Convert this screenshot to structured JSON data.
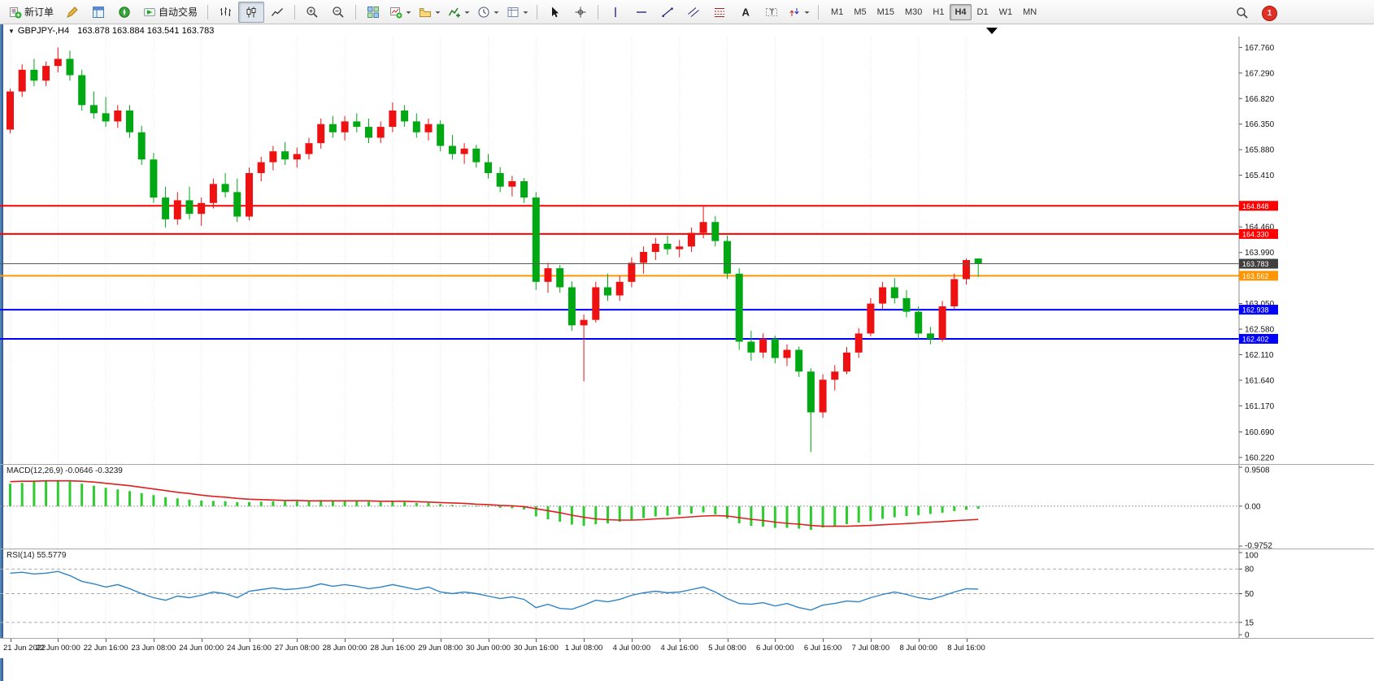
{
  "toolbar": {
    "new_order_label": "新订单",
    "autotrading_label": "自动交易",
    "timeframes": [
      "M1",
      "M5",
      "M15",
      "M30",
      "H1",
      "H4",
      "D1",
      "W1",
      "MN"
    ],
    "active_timeframe": "H4",
    "notification_count": "1"
  },
  "window": {
    "symbol": "GBPJPY-,H4",
    "ohlc": "163.878 163.884 163.541 163.783"
  },
  "chart_data": {
    "main": {
      "type": "candlestick",
      "symbol": "GBPJPY-",
      "timeframe": "H4",
      "current_ohlc": {
        "open": "163.878",
        "high": "163.884",
        "low": "163.541",
        "close": "163.783"
      },
      "up_color": "#ee1111",
      "down_color": "#00a814",
      "price_range": [
        160.1,
        167.96
      ],
      "candles": [
        [
          166.25,
          167.0,
          166.18,
          166.95
        ],
        [
          166.95,
          167.45,
          166.85,
          167.35
        ],
        [
          167.35,
          167.55,
          167.05,
          167.15
        ],
        [
          167.15,
          167.5,
          167.05,
          167.42
        ],
        [
          167.42,
          167.76,
          167.3,
          167.55
        ],
        [
          167.55,
          167.7,
          167.15,
          167.25
        ],
        [
          167.25,
          167.35,
          166.6,
          166.7
        ],
        [
          166.7,
          166.95,
          166.45,
          166.55
        ],
        [
          166.55,
          166.85,
          166.3,
          166.4
        ],
        [
          166.4,
          166.7,
          166.28,
          166.6
        ],
        [
          166.6,
          166.7,
          166.1,
          166.2
        ],
        [
          166.2,
          166.32,
          165.6,
          165.7
        ],
        [
          165.7,
          165.82,
          164.9,
          165.0
        ],
        [
          165.0,
          165.2,
          164.45,
          164.6
        ],
        [
          164.6,
          165.1,
          164.5,
          164.95
        ],
        [
          164.95,
          165.2,
          164.6,
          164.7
        ],
        [
          164.7,
          165.0,
          164.48,
          164.9
        ],
        [
          164.9,
          165.35,
          164.8,
          165.25
        ],
        [
          165.25,
          165.45,
          165.0,
          165.1
        ],
        [
          165.1,
          165.35,
          164.55,
          164.65
        ],
        [
          164.65,
          165.55,
          164.58,
          165.45
        ],
        [
          165.45,
          165.75,
          165.3,
          165.65
        ],
        [
          165.65,
          165.95,
          165.5,
          165.85
        ],
        [
          165.85,
          166.02,
          165.6,
          165.7
        ],
        [
          165.7,
          165.92,
          165.55,
          165.8
        ],
        [
          165.8,
          166.1,
          165.7,
          166.0
        ],
        [
          166.0,
          166.45,
          165.9,
          166.35
        ],
        [
          166.35,
          166.5,
          166.1,
          166.2
        ],
        [
          166.2,
          166.5,
          166.05,
          166.4
        ],
        [
          166.4,
          166.55,
          166.2,
          166.3
        ],
        [
          166.3,
          166.45,
          166.0,
          166.1
        ],
        [
          166.1,
          166.4,
          166.0,
          166.3
        ],
        [
          166.3,
          166.75,
          166.2,
          166.6
        ],
        [
          166.6,
          166.7,
          166.3,
          166.4
        ],
        [
          166.4,
          166.55,
          166.1,
          166.2
        ],
        [
          166.2,
          166.45,
          166.05,
          166.35
        ],
        [
          166.35,
          166.42,
          165.85,
          165.95
        ],
        [
          165.95,
          166.15,
          165.7,
          165.8
        ],
        [
          165.8,
          166.0,
          165.62,
          165.9
        ],
        [
          165.9,
          165.97,
          165.55,
          165.65
        ],
        [
          165.65,
          165.8,
          165.35,
          165.45
        ],
        [
          165.45,
          165.56,
          165.1,
          165.2
        ],
        [
          165.2,
          165.4,
          165.02,
          165.3
        ],
        [
          165.3,
          165.36,
          164.9,
          165.0
        ],
        [
          165.0,
          165.1,
          163.3,
          163.45
        ],
        [
          163.45,
          163.8,
          163.25,
          163.7
        ],
        [
          163.7,
          163.76,
          163.25,
          163.35
        ],
        [
          163.35,
          163.46,
          162.55,
          162.65
        ],
        [
          162.65,
          162.85,
          161.62,
          162.75
        ],
        [
          162.75,
          163.45,
          162.7,
          163.35
        ],
        [
          163.35,
          163.6,
          163.1,
          163.2
        ],
        [
          163.2,
          163.56,
          163.1,
          163.45
        ],
        [
          163.45,
          163.9,
          163.35,
          163.8
        ],
        [
          163.8,
          164.1,
          163.6,
          164.0
        ],
        [
          164.0,
          164.26,
          163.85,
          164.15
        ],
        [
          164.15,
          164.3,
          163.95,
          164.05
        ],
        [
          164.05,
          164.22,
          163.9,
          164.1
        ],
        [
          164.1,
          164.45,
          164.0,
          164.35
        ],
        [
          164.35,
          164.85,
          164.25,
          164.55
        ],
        [
          164.55,
          164.66,
          164.1,
          164.2
        ],
        [
          164.2,
          164.3,
          163.5,
          163.6
        ],
        [
          163.6,
          163.7,
          162.2,
          162.35
        ],
        [
          162.35,
          162.55,
          162.0,
          162.15
        ],
        [
          162.15,
          162.5,
          162.05,
          162.4
        ],
        [
          162.4,
          162.46,
          161.95,
          162.05
        ],
        [
          162.05,
          162.3,
          161.9,
          162.2
        ],
        [
          162.2,
          162.26,
          161.7,
          161.8
        ],
        [
          161.8,
          161.86,
          160.32,
          161.05
        ],
        [
          161.05,
          161.75,
          160.95,
          161.65
        ],
        [
          161.65,
          161.92,
          161.45,
          161.8
        ],
        [
          161.8,
          162.25,
          161.75,
          162.15
        ],
        [
          162.15,
          162.6,
          162.05,
          162.5
        ],
        [
          162.5,
          163.15,
          162.45,
          163.05
        ],
        [
          163.05,
          163.45,
          162.95,
          163.35
        ],
        [
          163.35,
          163.52,
          163.05,
          163.15
        ],
        [
          163.15,
          163.3,
          162.8,
          162.9
        ],
        [
          162.9,
          163.0,
          162.4,
          162.5
        ],
        [
          162.5,
          162.62,
          162.3,
          162.4
        ],
        [
          162.4,
          163.1,
          162.35,
          163.0
        ],
        [
          163.0,
          163.6,
          162.95,
          163.5
        ],
        [
          163.5,
          163.88,
          163.4,
          163.85
        ],
        [
          163.878,
          163.884,
          163.541,
          163.783
        ]
      ],
      "x_labels": [
        {
          "i": 0,
          "t": "21 Jun 2022"
        },
        {
          "i": 4,
          "t": "22 Jun 00:00"
        },
        {
          "i": 8,
          "t": "22 Jun 16:00"
        },
        {
          "i": 12,
          "t": "23 Jun 08:00"
        },
        {
          "i": 16,
          "t": "24 Jun 00:00"
        },
        {
          "i": 20,
          "t": "24 Jun 16:00"
        },
        {
          "i": 24,
          "t": "27 Jun 08:00"
        },
        {
          "i": 28,
          "t": "28 Jun 00:00"
        },
        {
          "i": 32,
          "t": "28 Jun 16:00"
        },
        {
          "i": 36,
          "t": "29 Jun 08:00"
        },
        {
          "i": 40,
          "t": "30 Jun 00:00"
        },
        {
          "i": 44,
          "t": "30 Jun 16:00"
        },
        {
          "i": 48,
          "t": "1 Jul 08:00"
        },
        {
          "i": 52,
          "t": "4 Jul 00:00"
        },
        {
          "i": 56,
          "t": "4 Jul 16:00"
        },
        {
          "i": 60,
          "t": "5 Jul 08:00"
        },
        {
          "i": 64,
          "t": "6 Jul 00:00"
        },
        {
          "i": 68,
          "t": "6 Jul 16:00"
        },
        {
          "i": 72,
          "t": "7 Jul 08:00"
        },
        {
          "i": 76,
          "t": "8 Jul 00:00"
        },
        {
          "i": 80,
          "t": "8 Jul 16:00"
        }
      ],
      "y_ticks": [
        {
          "v": 167.76,
          "t": "167.760"
        },
        {
          "v": 167.29,
          "t": "167.290"
        },
        {
          "v": 166.82,
          "t": "166.820"
        },
        {
          "v": 166.35,
          "t": "166.350"
        },
        {
          "v": 165.88,
          "t": "165.880"
        },
        {
          "v": 165.41,
          "t": "165.410"
        },
        {
          "v": 164.46,
          "t": "164.460"
        },
        {
          "v": 163.99,
          "t": "163.990"
        },
        {
          "v": 163.05,
          "t": "163.050"
        },
        {
          "v": 162.58,
          "t": "162.580"
        },
        {
          "v": 162.11,
          "t": "162.110"
        },
        {
          "v": 161.64,
          "t": "161.640"
        },
        {
          "v": 161.17,
          "t": "161.170"
        },
        {
          "v": 160.69,
          "t": "160.690"
        },
        {
          "v": 160.22,
          "t": "160.220"
        }
      ],
      "hlines": [
        {
          "price": 164.848,
          "label": "164.848",
          "color": "#ff0000",
          "lw": 2
        },
        {
          "price": 164.33,
          "label": "164.330",
          "color": "#ff0000",
          "lw": 2
        },
        {
          "price": 163.562,
          "label": "163.562",
          "color": "#ff9500",
          "lw": 2
        },
        {
          "price": 162.938,
          "label": "162.938",
          "color": "#0000ff",
          "lw": 2
        },
        {
          "price": 162.402,
          "label": "162.402",
          "color": "#0000ff",
          "lw": 2
        }
      ],
      "bid_line": {
        "price": 163.783,
        "label": "163.783",
        "line_color": "#5a5a5a",
        "tag_color": "#3f3f3f"
      }
    },
    "macd": {
      "type": "bar",
      "label": "MACD(12,26,9)",
      "values_text": "-0.0646 -0.3239",
      "range": [
        -0.9752,
        0.9508
      ],
      "y_ticks": [
        {
          "v": 0.9508,
          "t": "0.9508"
        },
        {
          "v": 0,
          "t": "0.00"
        },
        {
          "v": -0.9752,
          "t": "-0.9752"
        }
      ],
      "histogram_color": "#2ecc2e",
      "signal_color": "#e01f1f",
      "histogram": [
        0.55,
        0.57,
        0.6,
        0.62,
        0.63,
        0.6,
        0.55,
        0.5,
        0.45,
        0.41,
        0.37,
        0.32,
        0.27,
        0.22,
        0.19,
        0.16,
        0.14,
        0.13,
        0.12,
        0.1,
        0.1,
        0.11,
        0.12,
        0.12,
        0.12,
        0.13,
        0.15,
        0.14,
        0.14,
        0.13,
        0.11,
        0.1,
        0.11,
        0.1,
        0.08,
        0.08,
        0.05,
        0.03,
        0.02,
        0.01,
        -0.01,
        -0.04,
        -0.05,
        -0.08,
        -0.25,
        -0.32,
        -0.38,
        -0.45,
        -0.48,
        -0.44,
        -0.42,
        -0.38,
        -0.33,
        -0.29,
        -0.25,
        -0.23,
        -0.21,
        -0.18,
        -0.15,
        -0.2,
        -0.3,
        -0.42,
        -0.48,
        -0.5,
        -0.53,
        -0.53,
        -0.55,
        -0.58,
        -0.52,
        -0.48,
        -0.44,
        -0.4,
        -0.36,
        -0.31,
        -0.27,
        -0.24,
        -0.22,
        -0.19,
        -0.16,
        -0.12,
        -0.09,
        -0.0646
      ],
      "signal": [
        0.6,
        0.61,
        0.61,
        0.62,
        0.62,
        0.62,
        0.61,
        0.59,
        0.56,
        0.53,
        0.5,
        0.46,
        0.42,
        0.38,
        0.34,
        0.31,
        0.27,
        0.24,
        0.22,
        0.19,
        0.17,
        0.16,
        0.15,
        0.14,
        0.14,
        0.13,
        0.13,
        0.13,
        0.13,
        0.13,
        0.13,
        0.12,
        0.12,
        0.12,
        0.11,
        0.1,
        0.09,
        0.08,
        0.07,
        0.05,
        0.04,
        0.02,
        0.01,
        -0.01,
        -0.06,
        -0.11,
        -0.16,
        -0.22,
        -0.27,
        -0.31,
        -0.33,
        -0.34,
        -0.34,
        -0.33,
        -0.31,
        -0.3,
        -0.28,
        -0.26,
        -0.24,
        -0.23,
        -0.24,
        -0.28,
        -0.32,
        -0.35,
        -0.39,
        -0.42,
        -0.44,
        -0.47,
        -0.49,
        -0.49,
        -0.49,
        -0.48,
        -0.47,
        -0.455,
        -0.44,
        -0.425,
        -0.41,
        -0.39,
        -0.375,
        -0.355,
        -0.34,
        -0.3239
      ]
    },
    "rsi": {
      "type": "line",
      "label": "RSI(14)",
      "value_text": "55.5779",
      "range": [
        0,
        100
      ],
      "levels": [
        80,
        50,
        15
      ],
      "y_ticks": [
        {
          "v": 100,
          "t": "100"
        },
        {
          "v": 80,
          "t": "80"
        },
        {
          "v": 50,
          "t": "50"
        },
        {
          "v": 15,
          "t": "15"
        },
        {
          "v": 0,
          "t": "0"
        }
      ],
      "line_color": "#2f84c6",
      "values": [
        75,
        76,
        74,
        75,
        77,
        72,
        65,
        62,
        58,
        61,
        56,
        50,
        45,
        42,
        47,
        45,
        48,
        52,
        50,
        45,
        53,
        55,
        57,
        55,
        56,
        58,
        62,
        59,
        61,
        59,
        56,
        58,
        61,
        58,
        55,
        58,
        52,
        50,
        52,
        50,
        47,
        44,
        46,
        43,
        33,
        37,
        32,
        31,
        36,
        42,
        40,
        43,
        48,
        51,
        53,
        51,
        52,
        55,
        58,
        52,
        44,
        38,
        37,
        39,
        35,
        38,
        33,
        30,
        36,
        38,
        41,
        40,
        45,
        49,
        52,
        49,
        45,
        43,
        47,
        52,
        56,
        55.58
      ]
    }
  }
}
